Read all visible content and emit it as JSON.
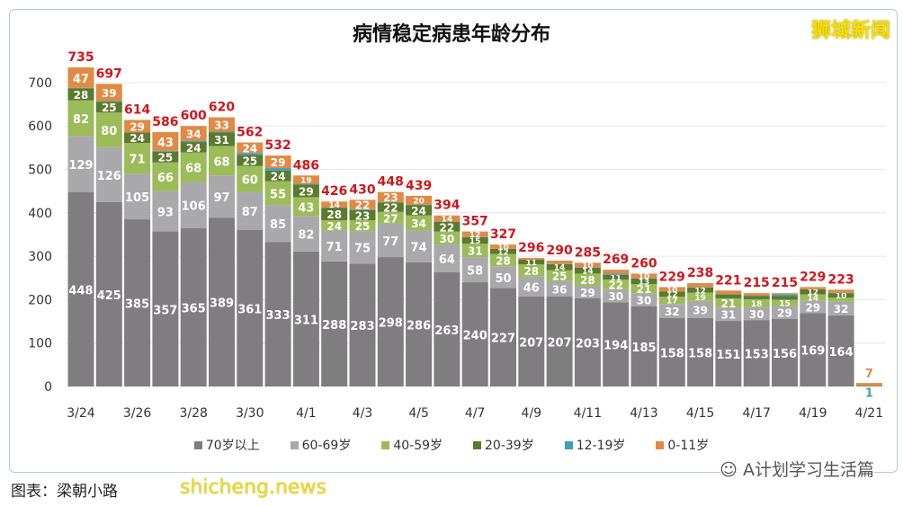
{
  "chart_data": {
    "type": "bar",
    "stacked": true,
    "title": "病情稳定病患年龄分布",
    "ylim": [
      0,
      780
    ],
    "yticks": [
      0,
      100,
      200,
      300,
      400,
      500,
      600,
      700
    ],
    "grid": true,
    "legend_position": "bottom",
    "categories": [
      "3/24",
      "3/25",
      "3/26",
      "3/27",
      "3/28",
      "3/29",
      "3/30",
      "3/31",
      "4/1",
      "4/2",
      "4/3",
      "4/4",
      "4/5",
      "4/6",
      "4/7",
      "4/8",
      "4/9",
      "4/10",
      "4/11",
      "4/12",
      "4/13",
      "4/14",
      "4/15",
      "4/16",
      "4/17",
      "4/18",
      "4/19",
      "4/20",
      "4/21"
    ],
    "xtick_labels": [
      "3/24",
      "3/26",
      "3/28",
      "3/30",
      "4/1",
      "4/3",
      "4/5",
      "4/7",
      "4/9",
      "4/11",
      "4/13",
      "4/15",
      "4/17",
      "4/19",
      "4/21"
    ],
    "series": [
      {
        "name": "70岁以上",
        "color": "#7f7d80",
        "values": [
          448,
          425,
          385,
          357,
          365,
          389,
          361,
          333,
          311,
          288,
          283,
          298,
          286,
          263,
          240,
          227,
          207,
          207,
          203,
          194,
          185,
          158,
          158,
          151,
          153,
          156,
          169,
          164,
          0
        ]
      },
      {
        "name": "60-69岁",
        "color": "#a9a9ab",
        "values": [
          129,
          126,
          105,
          93,
          106,
          97,
          87,
          85,
          82,
          71,
          75,
          77,
          74,
          64,
          58,
          50,
          46,
          36,
          29,
          30,
          30,
          32,
          39,
          31,
          30,
          29,
          29,
          32,
          0
        ]
      },
      {
        "name": "40-59岁",
        "color": "#9cbb59",
        "values": [
          82,
          80,
          71,
          66,
          68,
          68,
          60,
          55,
          43,
          24,
          25,
          27,
          34,
          30,
          31,
          28,
          28,
          25,
          28,
          22,
          21,
          17,
          19,
          21,
          18,
          15,
          14,
          9,
          0
        ]
      },
      {
        "name": "20-39岁",
        "color": "#5b7a2e",
        "values": [
          28,
          25,
          24,
          25,
          24,
          31,
          25,
          24,
          29,
          28,
          23,
          22,
          24,
          22,
          15,
          12,
          11,
          14,
          14,
          11,
          13,
          12,
          12,
          9,
          7,
          8,
          12,
          10,
          0
        ]
      },
      {
        "name": "12-19岁",
        "color": "#3f9fb8",
        "values": [
          1,
          2,
          0,
          2,
          3,
          2,
          5,
          6,
          2,
          1,
          2,
          1,
          1,
          1,
          1,
          0,
          0,
          1,
          1,
          3,
          1,
          0,
          1,
          1,
          1,
          4,
          0,
          1,
          1
        ]
      },
      {
        "name": "0-11岁",
        "color": "#e08a44",
        "values": [
          47,
          39,
          29,
          43,
          34,
          33,
          24,
          29,
          19,
          14,
          22,
          23,
          20,
          14,
          12,
          10,
          4,
          7,
          10,
          9,
          10,
          10,
          9,
          8,
          6,
          3,
          5,
          7,
          7
        ]
      }
    ],
    "totals": [
      735,
      697,
      614,
      586,
      600,
      620,
      562,
      532,
      486,
      426,
      430,
      448,
      439,
      394,
      357,
      327,
      296,
      290,
      285,
      269,
      260,
      229,
      238,
      221,
      215,
      215,
      229,
      223,
      null
    ]
  },
  "watermark_top": "狮城新闻",
  "credit": "图表：梁朝小路",
  "watermark_bottom": "shicheng.news",
  "wechat": "A计划学习生活篇",
  "total_color": "#d0161e"
}
